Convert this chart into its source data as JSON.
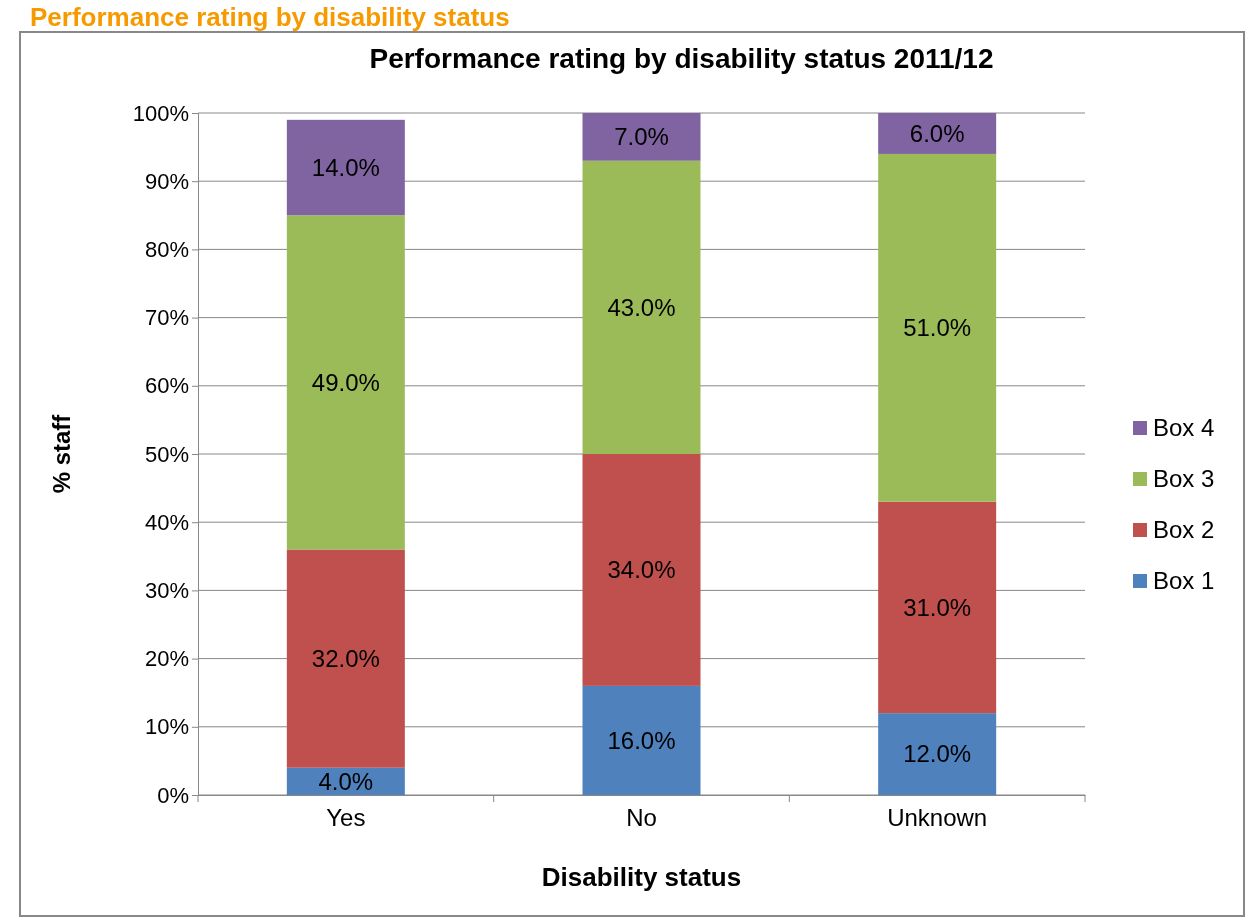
{
  "chart_data": {
    "type": "bar",
    "stacked": true,
    "title": "Performance rating by disability status 2011/12",
    "subtitle": "Performance rating by disability status",
    "xlabel": "Disability status",
    "ylabel": "% staff",
    "categories": [
      "Yes",
      "No",
      "Unknown"
    ],
    "series": [
      {
        "name": "Box 1",
        "color": "#4f81bd",
        "values": [
          4,
          16,
          12
        ],
        "value_labels": [
          "4.0%",
          "16.0%",
          "12.0%"
        ]
      },
      {
        "name": "Box 2",
        "color": "#c0504d",
        "values": [
          32,
          34,
          31
        ],
        "value_labels": [
          "32.0%",
          "34.0%",
          "31.0%"
        ]
      },
      {
        "name": "Box 3",
        "color": "#9bbb59",
        "values": [
          49,
          43,
          51
        ],
        "value_labels": [
          "49.0%",
          "43.0%",
          "51.0%"
        ]
      },
      {
        "name": "Box 4",
        "color": "#8064a2",
        "values": [
          14,
          7,
          6
        ],
        "value_labels": [
          "14.0%",
          "7.0%",
          "6.0%"
        ]
      }
    ],
    "ylim": [
      0,
      100
    ],
    "yticks": [
      {
        "value": 0,
        "label": "0%"
      },
      {
        "value": 10,
        "label": "10%"
      },
      {
        "value": 20,
        "label": "20%"
      },
      {
        "value": 30,
        "label": "30%"
      },
      {
        "value": 40,
        "label": "40%"
      },
      {
        "value": 50,
        "label": "50%"
      },
      {
        "value": 60,
        "label": "60%"
      },
      {
        "value": 70,
        "label": "70%"
      },
      {
        "value": 80,
        "label": "80%"
      },
      {
        "value": 90,
        "label": "90%"
      },
      {
        "value": 100,
        "label": "100%"
      }
    ],
    "grid": "y",
    "legend": "right"
  }
}
